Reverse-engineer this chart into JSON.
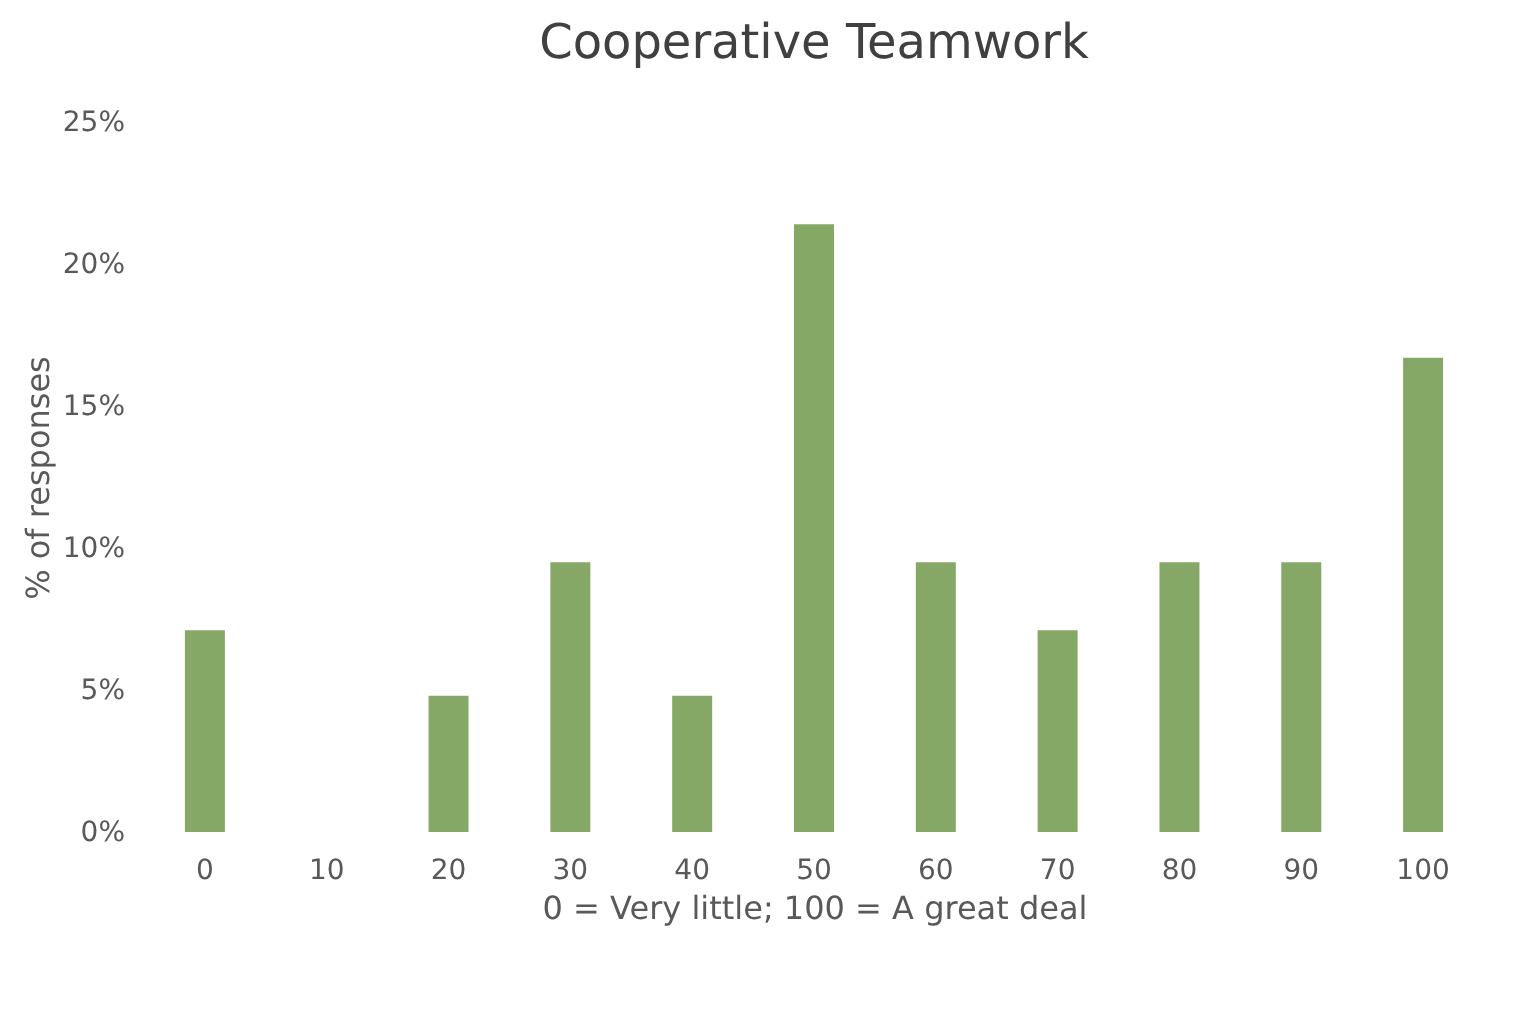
{
  "chart_data": {
    "type": "bar",
    "title": "Cooperative Teamwork",
    "xlabel": "0 = Very little; 100 = A great deal",
    "ylabel": "% of responses",
    "categories": [
      "0",
      "10",
      "20",
      "30",
      "40",
      "50",
      "60",
      "70",
      "80",
      "90",
      "100"
    ],
    "values": [
      7.1,
      0,
      4.8,
      9.5,
      4.8,
      21.4,
      9.5,
      7.1,
      9.5,
      9.5,
      16.7
    ],
    "color": "#86a866",
    "ylim": [
      0,
      25
    ],
    "yticks": [
      {
        "value": 0,
        "label": "0%"
      },
      {
        "value": 5,
        "label": "5%"
      },
      {
        "value": 10,
        "label": "10%"
      },
      {
        "value": 15,
        "label": "15%"
      },
      {
        "value": 20,
        "label": "20%"
      },
      {
        "value": 25,
        "label": "25%"
      }
    ],
    "grid": false
  }
}
